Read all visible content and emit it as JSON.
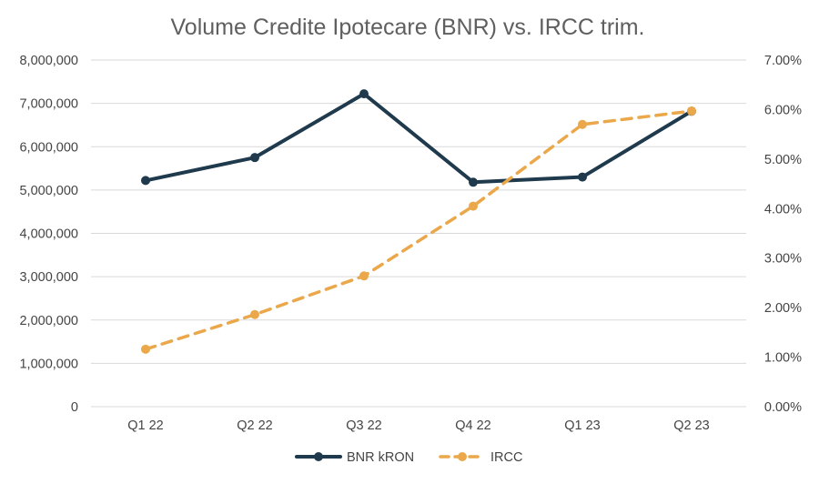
{
  "chart_data": {
    "type": "line",
    "title": "Volume Credite Ipotecare (BNR) vs. IRCC trim.",
    "categories": [
      "Q1 22",
      "Q2 22",
      "Q3 22",
      "Q4 22",
      "Q1 23",
      "Q2 23"
    ],
    "y_left": {
      "range": [
        0,
        8000000
      ],
      "ticks": [
        0,
        1000000,
        2000000,
        3000000,
        4000000,
        5000000,
        6000000,
        7000000,
        8000000
      ],
      "tick_labels": [
        "0",
        "1,000,000",
        "2,000,000",
        "3,000,000",
        "4,000,000",
        "5,000,000",
        "6,000,000",
        "7,000,000",
        "8,000,000"
      ]
    },
    "y_right": {
      "range": [
        0,
        0.07
      ],
      "ticks": [
        0,
        0.01,
        0.02,
        0.03,
        0.04,
        0.05,
        0.06,
        0.07
      ],
      "tick_labels": [
        "0.00%",
        "1.00%",
        "2.00%",
        "3.00%",
        "4.00%",
        "5.00%",
        "6.00%",
        "7.00%"
      ]
    },
    "series": [
      {
        "name": "BNR kRON",
        "axis": "left",
        "style": "solid",
        "color": "#1f3a4c",
        "values": [
          5220000,
          5750000,
          7220000,
          5180000,
          5300000,
          6820000
        ]
      },
      {
        "name": "IRCC",
        "axis": "right",
        "style": "dashed",
        "color": "#eaa84a",
        "values": [
          0.0116,
          0.0186,
          0.0264,
          0.0405,
          0.057,
          0.0597
        ]
      }
    ],
    "grid": true,
    "legend_position": "bottom"
  }
}
